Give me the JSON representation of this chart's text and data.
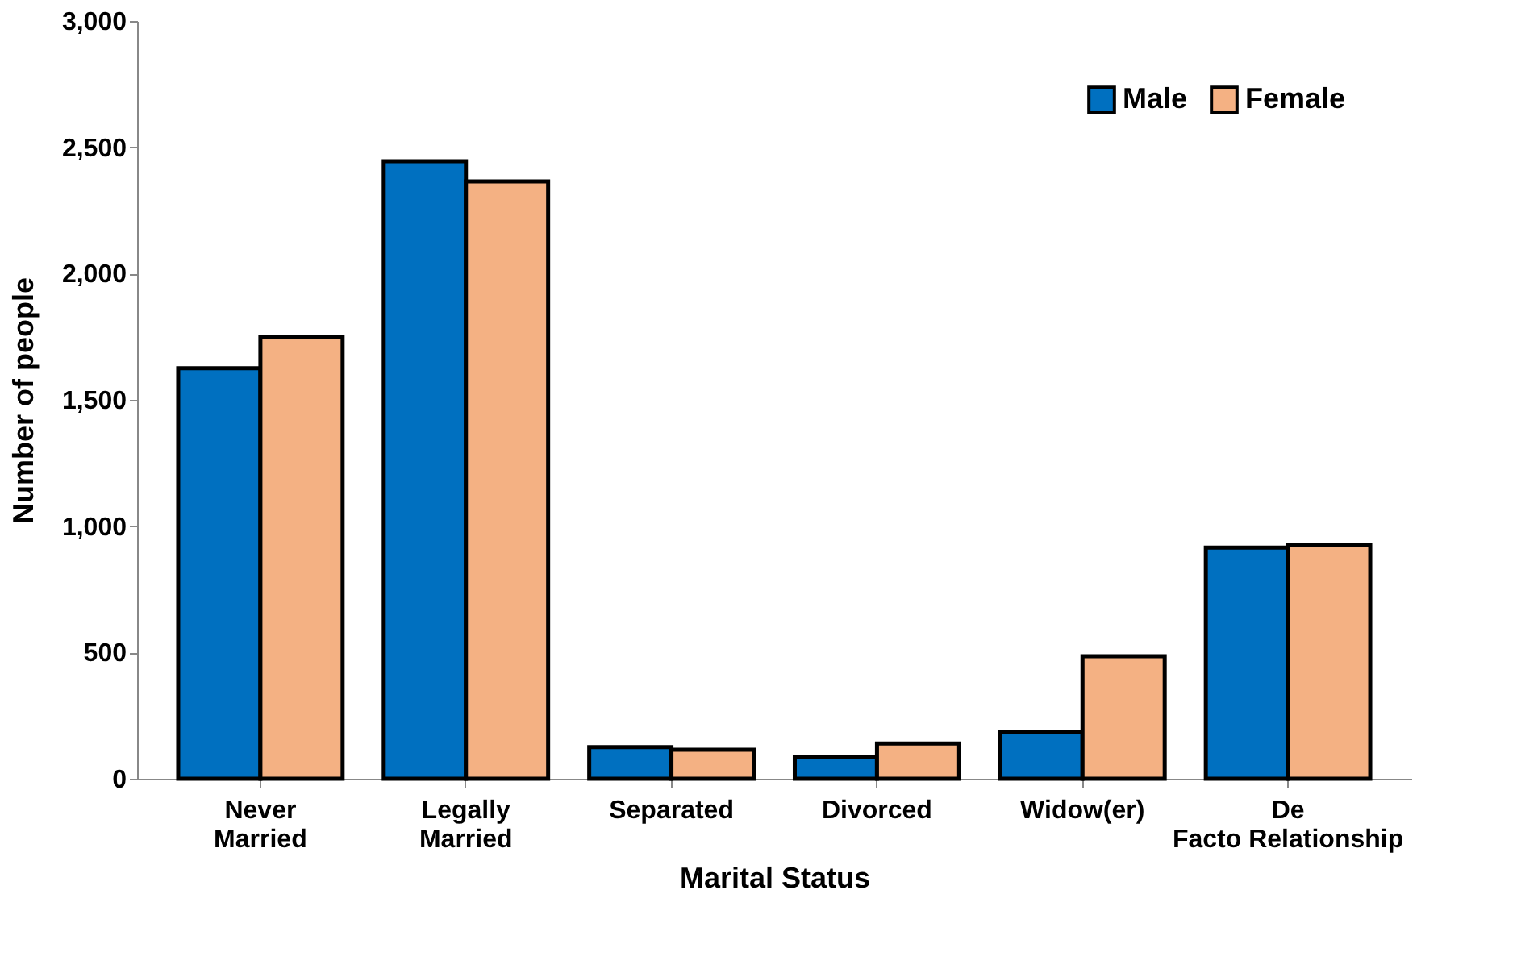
{
  "chart_data": {
    "type": "bar",
    "xlabel": "Marital Status",
    "ylabel": "Number of people",
    "categories": [
      "Never Married",
      "Legally Married",
      "Separated",
      "Divorced",
      "Widow(er)",
      "De Facto Relationship"
    ],
    "series": [
      {
        "name": "Male",
        "color": "#0070c0",
        "values": [
          1625,
          2445,
          125,
          85,
          185,
          915
        ]
      },
      {
        "name": "Female",
        "color": "#f4b183",
        "values": [
          1750,
          2365,
          115,
          140,
          485,
          925
        ]
      }
    ],
    "ylim": [
      0,
      3000
    ],
    "yticks": [
      {
        "value": 0,
        "label": "0"
      },
      {
        "value": 500,
        "label": "500"
      },
      {
        "value": 1000,
        "label": "1,000"
      },
      {
        "value": 1500,
        "label": "1,500"
      },
      {
        "value": 2000,
        "label": "2,000"
      },
      {
        "value": 2500,
        "label": "2,500"
      },
      {
        "value": 3000,
        "label": "3,000"
      }
    ],
    "grid": false,
    "legend": "top right"
  }
}
